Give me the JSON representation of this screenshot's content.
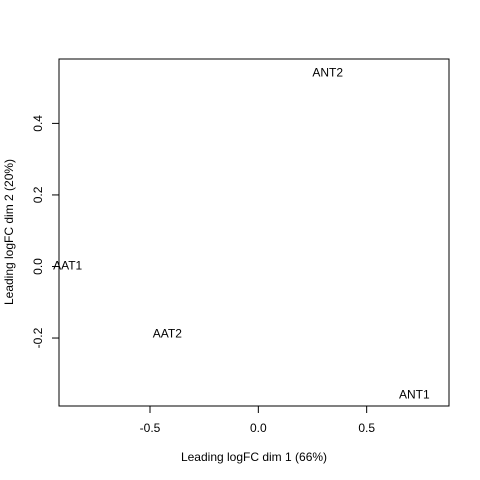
{
  "chart_data": {
    "type": "scatter",
    "title": "",
    "xlabel": "Leading logFC dim 1 (66%)",
    "ylabel": "Leading logFC dim 2 (20%)",
    "xlim": [
      -0.92,
      0.88
    ],
    "ylim": [
      -0.39,
      0.58
    ],
    "xticks": [
      -0.5,
      0.0,
      0.5
    ],
    "xtick_labels": [
      "-0.5",
      "0.0",
      "0.5"
    ],
    "yticks": [
      -0.2,
      0.0,
      0.2,
      0.4
    ],
    "ytick_labels": [
      "-0.2",
      "0.0",
      "0.2",
      "0.4"
    ],
    "grid": false,
    "points": [
      {
        "label": "ANT2",
        "x": 0.32,
        "y": 0.54
      },
      {
        "label": "AAT1",
        "x": -0.88,
        "y": 0.0
      },
      {
        "label": "AAT2",
        "x": -0.42,
        "y": -0.19
      },
      {
        "label": "ANT1",
        "x": 0.72,
        "y": -0.36
      }
    ]
  }
}
